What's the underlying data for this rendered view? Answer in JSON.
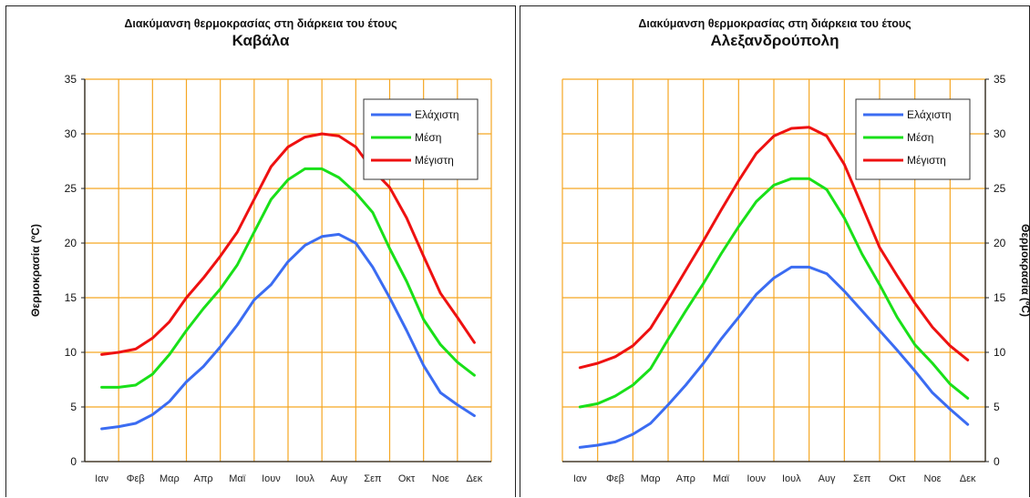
{
  "chart_data": [
    {
      "type": "line",
      "title": "Διακύμανση θερμοκρασίας στη διάρκεια του έτους",
      "subtitle": "Καβάλα",
      "xlabel": "",
      "ylabel": "Θερμοκρασία (ºC)",
      "ylabel_side": "left",
      "ylim": [
        0,
        35
      ],
      "yticks": [
        "0",
        "5",
        "10",
        "15",
        "20",
        "25",
        "30",
        "35"
      ],
      "grid": true,
      "legend_position": "top-right",
      "categories": [
        "Ιαν",
        "Φεβ",
        "Μαρ",
        "Απρ",
        "Μαϊ",
        "Ιουν",
        "Ιουλ",
        "Αυγ",
        "Σεπ",
        "Οκτ",
        "Νοε",
        "Δεκ"
      ],
      "x": [
        1,
        1.5,
        2,
        2.5,
        3,
        3.5,
        4,
        4.5,
        5,
        5.5,
        6,
        6.5,
        7,
        7.5,
        8,
        8.5,
        9,
        9.5,
        10,
        10.5,
        11,
        11.5,
        12
      ],
      "series": [
        {
          "name": "Ελάχιστη",
          "color": "#3b6cf2",
          "values": [
            3.0,
            3.2,
            3.5,
            4.3,
            5.5,
            7.3,
            8.7,
            10.5,
            12.5,
            14.8,
            16.2,
            18.3,
            19.8,
            20.6,
            20.8,
            20.0,
            17.8,
            15.0,
            12.0,
            8.8,
            6.3,
            5.2,
            4.2
          ]
        },
        {
          "name": "Μέση",
          "color": "#19e019",
          "values": [
            6.8,
            6.8,
            7.0,
            8.0,
            9.8,
            12.0,
            14.0,
            15.8,
            18.0,
            21.0,
            24.0,
            25.8,
            26.8,
            26.8,
            26.0,
            24.6,
            22.8,
            19.5,
            16.5,
            13.0,
            10.7,
            9.1,
            7.9
          ]
        },
        {
          "name": "Μέγιστη",
          "color": "#ee1111",
          "values": [
            9.8,
            10.0,
            10.3,
            11.3,
            12.8,
            15.0,
            16.8,
            18.8,
            21.0,
            24.0,
            27.0,
            28.8,
            29.7,
            30.0,
            29.8,
            28.8,
            26.7,
            25.1,
            22.3,
            18.8,
            15.4,
            13.2,
            10.9
          ]
        }
      ]
    },
    {
      "type": "line",
      "title": "Διακύμανση θερμοκρασίας στη διάρκεια του έτους",
      "subtitle": "Αλεξανδρούπολη",
      "xlabel": "",
      "ylabel": "Θερμοκρασία (ºC)",
      "ylabel_side": "right",
      "ylim": [
        0,
        35
      ],
      "yticks": [
        "0",
        "5",
        "10",
        "15",
        "20",
        "25",
        "30",
        "35"
      ],
      "grid": true,
      "legend_position": "top-right",
      "categories": [
        "Ιαν",
        "Φεβ",
        "Μαρ",
        "Απρ",
        "Μαϊ",
        "Ιουν",
        "Ιουλ",
        "Αυγ",
        "Σεπ",
        "Οκτ",
        "Νοε",
        "Δεκ"
      ],
      "x": [
        1,
        1.5,
        2,
        2.5,
        3,
        3.5,
        4,
        4.5,
        5,
        5.5,
        6,
        6.5,
        7,
        7.5,
        8,
        8.5,
        9,
        9.5,
        10,
        10.5,
        11,
        11.5,
        12
      ],
      "series": [
        {
          "name": "Ελάχιστη",
          "color": "#3b6cf2",
          "values": [
            1.3,
            1.5,
            1.8,
            2.5,
            3.5,
            5.2,
            7.0,
            9.0,
            11.2,
            13.2,
            15.3,
            16.8,
            17.8,
            17.8,
            17.2,
            15.6,
            13.8,
            12.0,
            10.2,
            8.3,
            6.3,
            4.8,
            3.4
          ]
        },
        {
          "name": "Μέση",
          "color": "#19e019",
          "values": [
            5.0,
            5.3,
            6.0,
            7.0,
            8.5,
            11.2,
            13.8,
            16.3,
            19.0,
            21.5,
            23.8,
            25.3,
            25.9,
            25.9,
            24.9,
            22.3,
            19.0,
            16.2,
            13.2,
            10.7,
            9.0,
            7.1,
            5.8
          ]
        },
        {
          "name": "Μέγιστη",
          "color": "#ee1111",
          "values": [
            8.6,
            9.0,
            9.6,
            10.6,
            12.2,
            14.8,
            17.5,
            20.2,
            23.0,
            25.7,
            28.2,
            29.8,
            30.5,
            30.6,
            29.8,
            27.2,
            23.4,
            19.6,
            17.0,
            14.5,
            12.3,
            10.6,
            9.3
          ]
        }
      ]
    }
  ]
}
